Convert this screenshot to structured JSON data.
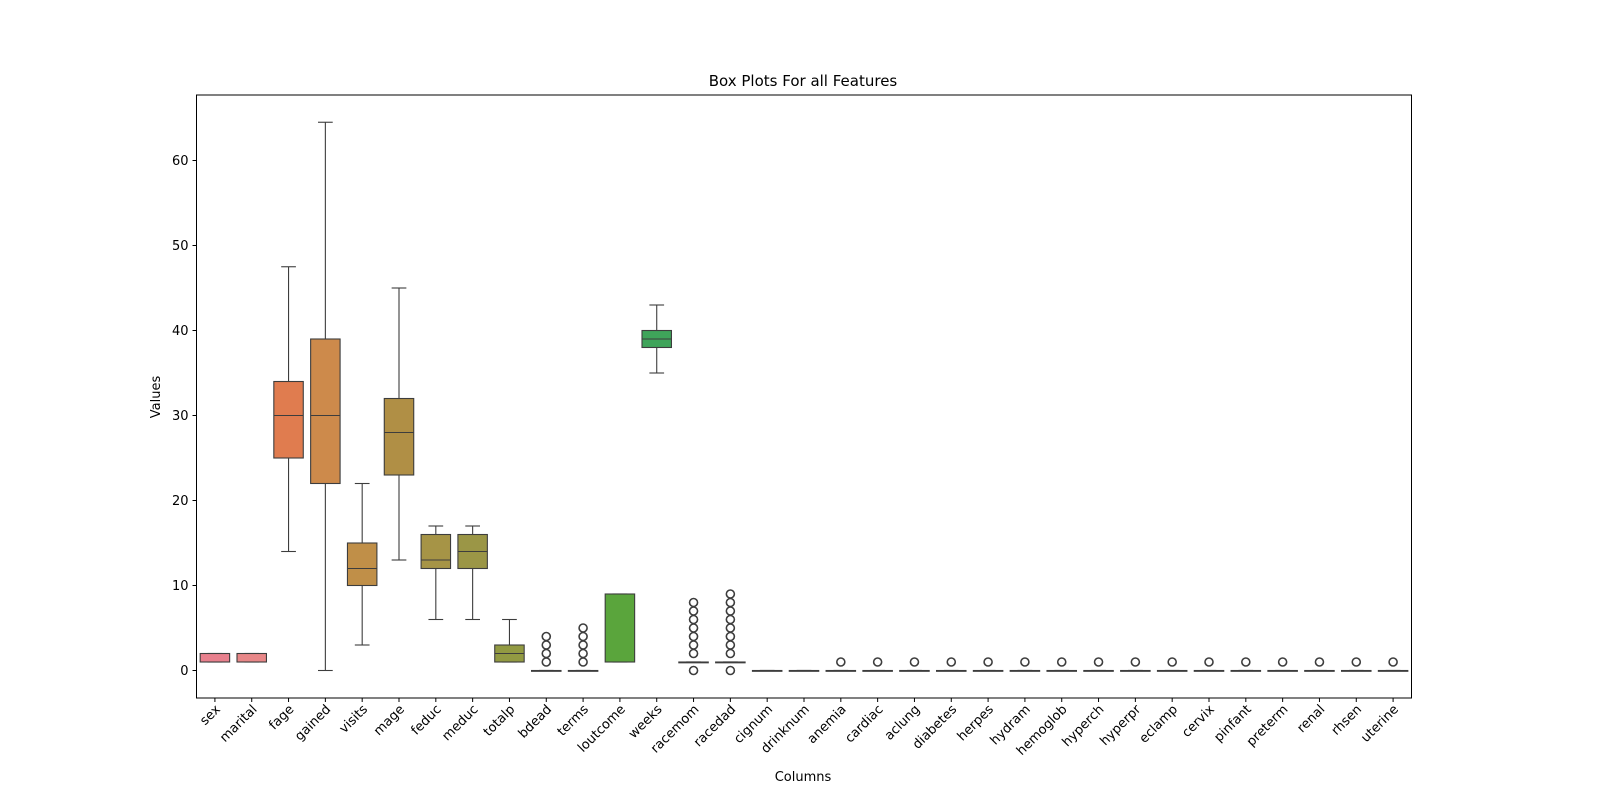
{
  "chart_data": {
    "type": "box",
    "title": "Box Plots For all Features",
    "xlabel": "Columns",
    "ylabel": "Values",
    "ylim": [
      -3.2,
      67.7
    ],
    "yticks": [
      0,
      10,
      20,
      30,
      40,
      50,
      60
    ],
    "grid": false,
    "legend": "none",
    "series": [
      {
        "name": "sex",
        "color": "#e8808d",
        "q1": 1,
        "median": 1,
        "q3": 2,
        "whisker_low": 1,
        "whisker_high": 2,
        "outliers": []
      },
      {
        "name": "marital",
        "color": "#e88788",
        "q1": 1,
        "median": 1,
        "q3": 2,
        "whisker_low": 1,
        "whisker_high": 2,
        "outliers": []
      },
      {
        "name": "fage",
        "color": "#e07c4f",
        "q1": 25,
        "median": 30,
        "q3": 34,
        "whisker_low": 14,
        "whisker_high": 47.5,
        "outliers": []
      },
      {
        "name": "gained",
        "color": "#cd8a4b",
        "q1": 22,
        "median": 30,
        "q3": 39,
        "whisker_low": 0,
        "whisker_high": 64.5,
        "outliers": []
      },
      {
        "name": "visits",
        "color": "#c08f48",
        "q1": 10,
        "median": 12,
        "q3": 15,
        "whisker_low": 3,
        "whisker_high": 22,
        "outliers": []
      },
      {
        "name": "mage",
        "color": "#b08f45",
        "q1": 23,
        "median": 28,
        "q3": 32,
        "whisker_low": 13,
        "whisker_high": 45,
        "outliers": []
      },
      {
        "name": "feduc",
        "color": "#a69446",
        "q1": 12,
        "median": 13,
        "q3": 16,
        "whisker_low": 6,
        "whisker_high": 17,
        "outliers": []
      },
      {
        "name": "meduc",
        "color": "#9b9646",
        "q1": 12,
        "median": 14,
        "q3": 16,
        "whisker_low": 6,
        "whisker_high": 17,
        "outliers": []
      },
      {
        "name": "totalp",
        "color": "#929a42",
        "q1": 1,
        "median": 2,
        "q3": 3,
        "whisker_low": 1,
        "whisker_high": 6,
        "outliers": []
      },
      {
        "name": "bdead",
        "color": "#8a9e40",
        "q1": 0,
        "median": 0,
        "q3": 0,
        "whisker_low": 0,
        "whisker_high": 0,
        "outliers": [
          1,
          2,
          3,
          4
        ]
      },
      {
        "name": "terms",
        "color": "#7fa33f",
        "q1": 0,
        "median": 0,
        "q3": 0,
        "whisker_low": 0,
        "whisker_high": 0,
        "outliers": [
          1,
          2,
          3,
          4,
          5
        ]
      },
      {
        "name": "loutcome",
        "color": "#5aa53c",
        "q1": 1,
        "median": 1,
        "q3": 9,
        "whisker_low": 1,
        "whisker_high": 9,
        "outliers": []
      },
      {
        "name": "weeks",
        "color": "#3fa45a",
        "q1": 38,
        "median": 39,
        "q3": 40,
        "whisker_low": 35,
        "whisker_high": 43,
        "outliers": []
      },
      {
        "name": "racemom",
        "color": "#3ea37a",
        "q1": 1,
        "median": 1,
        "q3": 1,
        "whisker_low": 1,
        "whisker_high": 1,
        "outliers": [
          0,
          2,
          3,
          4,
          5,
          6,
          7,
          8
        ]
      },
      {
        "name": "racedad",
        "color": "#3ea38a",
        "q1": 1,
        "median": 1,
        "q3": 1,
        "whisker_low": 1,
        "whisker_high": 1,
        "outliers": [
          0,
          2,
          3,
          4,
          5,
          6,
          7,
          8,
          9
        ]
      },
      {
        "name": "cignum",
        "color": "#3fa39a",
        "q1": 0,
        "median": 0,
        "q3": 0,
        "whisker_low": 0,
        "whisker_high": 0,
        "outliers": []
      },
      {
        "name": "drinknum",
        "color": "#40a2a8",
        "q1": 0,
        "median": 0,
        "q3": 0,
        "whisker_low": 0,
        "whisker_high": 0,
        "outliers": []
      },
      {
        "name": "anemia",
        "color": "#41a1b4",
        "q1": 0,
        "median": 0,
        "q3": 0,
        "whisker_low": 0,
        "whisker_high": 0,
        "outliers": [
          1
        ]
      },
      {
        "name": "cardiac",
        "color": "#44a0c0",
        "q1": 0,
        "median": 0,
        "q3": 0,
        "whisker_low": 0,
        "whisker_high": 0,
        "outliers": [
          1
        ]
      },
      {
        "name": "aclung",
        "color": "#4a9dcc",
        "q1": 0,
        "median": 0,
        "q3": 0,
        "whisker_low": 0,
        "whisker_high": 0,
        "outliers": [
          1
        ]
      },
      {
        "name": "diabetes",
        "color": "#5598d8",
        "q1": 0,
        "median": 0,
        "q3": 0,
        "whisker_low": 0,
        "whisker_high": 0,
        "outliers": [
          1
        ]
      },
      {
        "name": "herpes",
        "color": "#6892e2",
        "q1": 0,
        "median": 0,
        "q3": 0,
        "whisker_low": 0,
        "whisker_high": 0,
        "outliers": [
          1
        ]
      },
      {
        "name": "hydram",
        "color": "#7f8be8",
        "q1": 0,
        "median": 0,
        "q3": 0,
        "whisker_low": 0,
        "whisker_high": 0,
        "outliers": [
          1
        ]
      },
      {
        "name": "hemoglob",
        "color": "#9683ea",
        "q1": 0,
        "median": 0,
        "q3": 0,
        "whisker_low": 0,
        "whisker_high": 0,
        "outliers": [
          1
        ]
      },
      {
        "name": "hyperch",
        "color": "#aa7ce8",
        "q1": 0,
        "median": 0,
        "q3": 0,
        "whisker_low": 0,
        "whisker_high": 0,
        "outliers": [
          1
        ]
      },
      {
        "name": "hyperpr",
        "color": "#bd76e2",
        "q1": 0,
        "median": 0,
        "q3": 0,
        "whisker_low": 0,
        "whisker_high": 0,
        "outliers": [
          1
        ]
      },
      {
        "name": "eclamp",
        "color": "#cc72d8",
        "q1": 0,
        "median": 0,
        "q3": 0,
        "whisker_low": 0,
        "whisker_high": 0,
        "outliers": [
          1
        ]
      },
      {
        "name": "cervix",
        "color": "#d870cc",
        "q1": 0,
        "median": 0,
        "q3": 0,
        "whisker_low": 0,
        "whisker_high": 0,
        "outliers": [
          1
        ]
      },
      {
        "name": "pinfant",
        "color": "#e070bc",
        "q1": 0,
        "median": 0,
        "q3": 0,
        "whisker_low": 0,
        "whisker_high": 0,
        "outliers": [
          1
        ]
      },
      {
        "name": "preterm",
        "color": "#e573ac",
        "q1": 0,
        "median": 0,
        "q3": 0,
        "whisker_low": 0,
        "whisker_high": 0,
        "outliers": [
          1
        ]
      },
      {
        "name": "renal",
        "color": "#e7789c",
        "q1": 0,
        "median": 0,
        "q3": 0,
        "whisker_low": 0,
        "whisker_high": 0,
        "outliers": [
          1
        ]
      },
      {
        "name": "rhsen",
        "color": "#e87c90",
        "q1": 0,
        "median": 0,
        "q3": 0,
        "whisker_low": 0,
        "whisker_high": 0,
        "outliers": [
          1
        ]
      },
      {
        "name": "uterine",
        "color": "#e8808a",
        "q1": 0,
        "median": 0,
        "q3": 0,
        "whisker_low": 0,
        "whisker_high": 0,
        "outliers": [
          1
        ]
      }
    ]
  }
}
